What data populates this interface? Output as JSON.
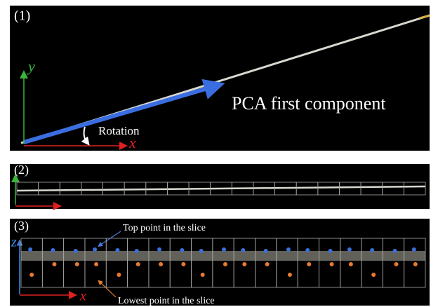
{
  "panel1": {
    "label": "(1)",
    "y_axis": "y",
    "x_axis": "x",
    "rotation": "Rotation",
    "pca": "PCA first component"
  },
  "panel2": {
    "label": "(2)"
  },
  "panel3": {
    "label": "(3)",
    "z_axis": "z",
    "x_axis": "x",
    "top": "Top point in the slice",
    "lowest": "Lowest point in the slice"
  }
}
